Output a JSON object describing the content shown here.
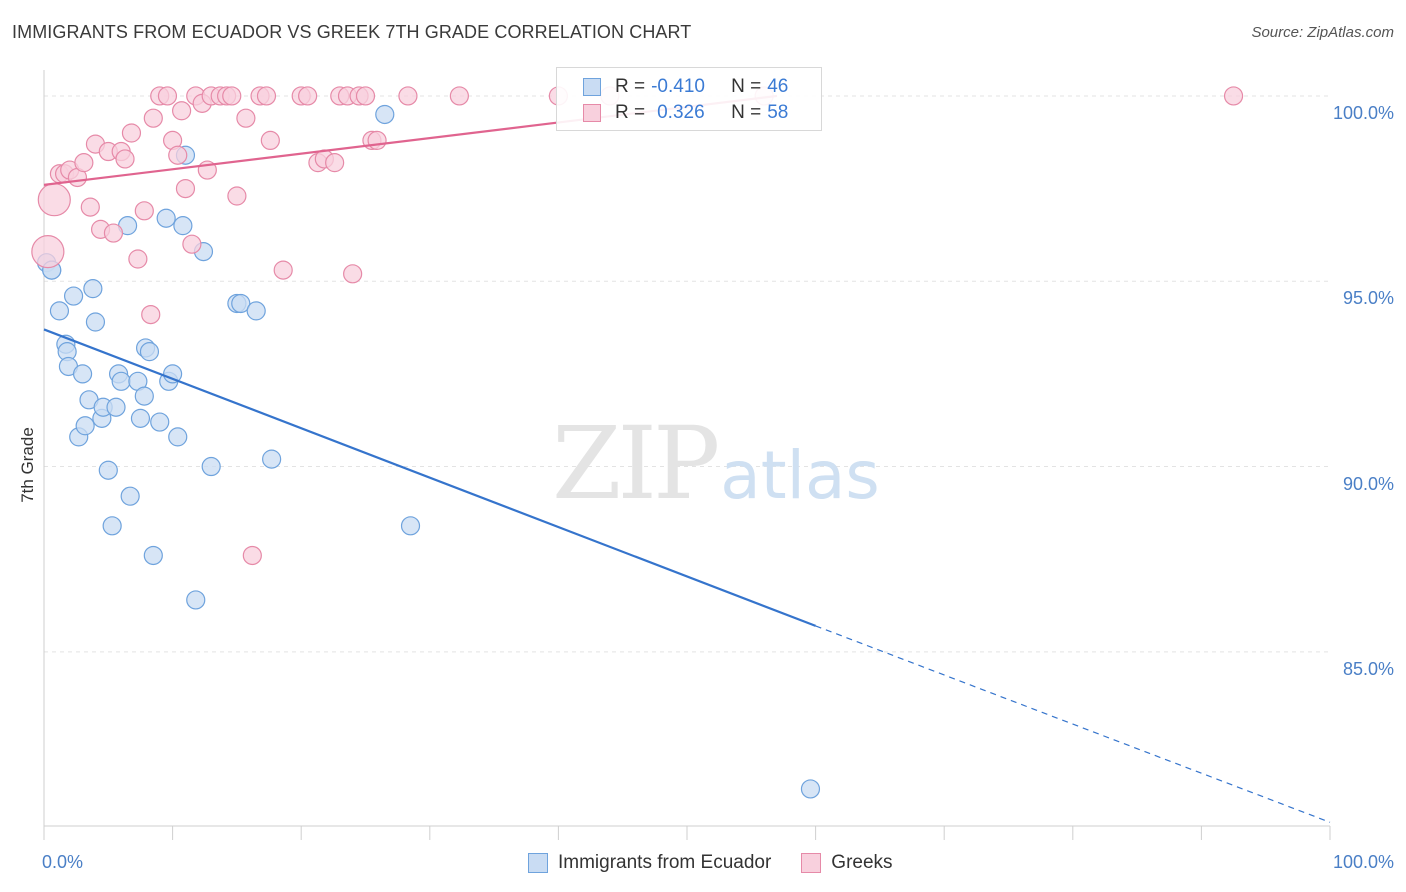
{
  "title": "IMMIGRANTS FROM ECUADOR VS GREEK 7TH GRADE CORRELATION CHART",
  "source": "Source: ZipAtlas.com",
  "watermark": {
    "zip": "ZIP",
    "atlas": "atlas"
  },
  "legend_stats": [
    {
      "r_label": "R =",
      "r_value": "-0.410",
      "n_label": "N =",
      "n_value": "46",
      "color": "#6fa3dd",
      "fill": "#c9dcf3"
    },
    {
      "r_label": "R =",
      "r_value": "0.326",
      "n_label": "N =",
      "n_value": "58",
      "color": "#e68aa8",
      "fill": "#f8d0dd"
    }
  ],
  "chart_data": {
    "type": "scatter",
    "title": "IMMIGRANTS FROM ECUADOR VS GREEK 7TH GRADE CORRELATION CHART",
    "ylabel": "7th Grade",
    "xlabel": "",
    "xlim": [
      0,
      100
    ],
    "ylim": [
      80.3,
      100.7
    ],
    "x_tick_labels": [
      "0.0%",
      "100.0%"
    ],
    "y_ticks": [
      100,
      95,
      90,
      85
    ],
    "y_tick_labels": [
      "100.0%",
      "95.0%",
      "90.0%",
      "85.0%"
    ],
    "grid": true,
    "legend_position": "bottom-center",
    "series": [
      {
        "name": "Immigrants from Ecuador",
        "color": "#6fa3dd",
        "fill": "#c9dcf3",
        "line_color": "#3574cc",
        "trend": {
          "x0": 0,
          "y0": 93.7,
          "x1": 60,
          "y1": 85.7,
          "x_dash_end": 100,
          "y_dash_end": 80.4
        },
        "points": [
          [
            0.2,
            95.5
          ],
          [
            0.6,
            95.3
          ],
          [
            1.2,
            94.2
          ],
          [
            1.7,
            93.3
          ],
          [
            1.8,
            93.1
          ],
          [
            1.9,
            92.7
          ],
          [
            2.3,
            94.6
          ],
          [
            2.7,
            90.8
          ],
          [
            3.0,
            92.5
          ],
          [
            3.2,
            91.1
          ],
          [
            3.5,
            91.8
          ],
          [
            3.8,
            94.8
          ],
          [
            4.0,
            93.9
          ],
          [
            4.5,
            91.3
          ],
          [
            4.6,
            91.6
          ],
          [
            5.0,
            89.9
          ],
          [
            5.3,
            88.4
          ],
          [
            5.6,
            91.6
          ],
          [
            5.8,
            92.5
          ],
          [
            6.0,
            92.3
          ],
          [
            6.5,
            96.5
          ],
          [
            6.7,
            89.2
          ],
          [
            7.3,
            92.3
          ],
          [
            7.5,
            91.3
          ],
          [
            7.8,
            91.9
          ],
          [
            7.9,
            93.2
          ],
          [
            8.2,
            93.1
          ],
          [
            8.5,
            87.6
          ],
          [
            9.0,
            91.2
          ],
          [
            9.5,
            96.7
          ],
          [
            9.7,
            92.3
          ],
          [
            10.0,
            92.5
          ],
          [
            10.4,
            90.8
          ],
          [
            10.8,
            96.5
          ],
          [
            11.0,
            98.4
          ],
          [
            11.8,
            86.4
          ],
          [
            12.4,
            95.8
          ],
          [
            13.0,
            90.0
          ],
          [
            15.0,
            94.4
          ],
          [
            15.3,
            94.4
          ],
          [
            16.5,
            94.2
          ],
          [
            17.7,
            90.2
          ],
          [
            26.5,
            99.5
          ],
          [
            28.5,
            88.4
          ],
          [
            59.6,
            81.3
          ],
          [
            0.6,
            95.3
          ]
        ]
      },
      {
        "name": "Greeks",
        "color": "#e68aa8",
        "fill": "#f8d0dd",
        "line_color": "#e0648f",
        "trend": {
          "x0": 0,
          "y0": 97.6,
          "x1": 57,
          "y1": 100.0
        },
        "points": [
          [
            0.3,
            95.8
          ],
          [
            0.8,
            97.2
          ],
          [
            1.2,
            97.9
          ],
          [
            1.6,
            97.9
          ],
          [
            2.0,
            98.0
          ],
          [
            2.6,
            97.8
          ],
          [
            3.1,
            98.2
          ],
          [
            3.6,
            97.0
          ],
          [
            4.0,
            98.7
          ],
          [
            4.4,
            96.4
          ],
          [
            5.0,
            98.5
          ],
          [
            5.4,
            96.3
          ],
          [
            6.0,
            98.5
          ],
          [
            6.3,
            98.3
          ],
          [
            6.8,
            99.0
          ],
          [
            7.3,
            95.6
          ],
          [
            7.8,
            96.9
          ],
          [
            8.3,
            94.1
          ],
          [
            8.5,
            99.4
          ],
          [
            9.0,
            100.0
          ],
          [
            9.6,
            100.0
          ],
          [
            10.0,
            98.8
          ],
          [
            10.4,
            98.4
          ],
          [
            10.7,
            99.6
          ],
          [
            11.0,
            97.5
          ],
          [
            11.5,
            96.0
          ],
          [
            11.8,
            100.0
          ],
          [
            12.3,
            99.8
          ],
          [
            12.7,
            98.0
          ],
          [
            13.0,
            100.0
          ],
          [
            13.7,
            100.0
          ],
          [
            14.2,
            100.0
          ],
          [
            14.6,
            100.0
          ],
          [
            15.0,
            97.3
          ],
          [
            15.7,
            99.4
          ],
          [
            16.2,
            87.6
          ],
          [
            16.8,
            100.0
          ],
          [
            17.3,
            100.0
          ],
          [
            17.6,
            98.8
          ],
          [
            18.6,
            95.3
          ],
          [
            20.0,
            100.0
          ],
          [
            20.5,
            100.0
          ],
          [
            21.3,
            98.2
          ],
          [
            21.8,
            98.3
          ],
          [
            22.6,
            98.2
          ],
          [
            23.0,
            100.0
          ],
          [
            23.6,
            100.0
          ],
          [
            24.0,
            95.2
          ],
          [
            24.5,
            100.0
          ],
          [
            25.0,
            100.0
          ],
          [
            25.5,
            98.8
          ],
          [
            25.9,
            98.8
          ],
          [
            28.3,
            100.0
          ],
          [
            32.3,
            100.0
          ],
          [
            40.0,
            100.0
          ],
          [
            44.0,
            100.0
          ],
          [
            56.0,
            100.0
          ],
          [
            92.5,
            100.0
          ]
        ]
      }
    ]
  }
}
